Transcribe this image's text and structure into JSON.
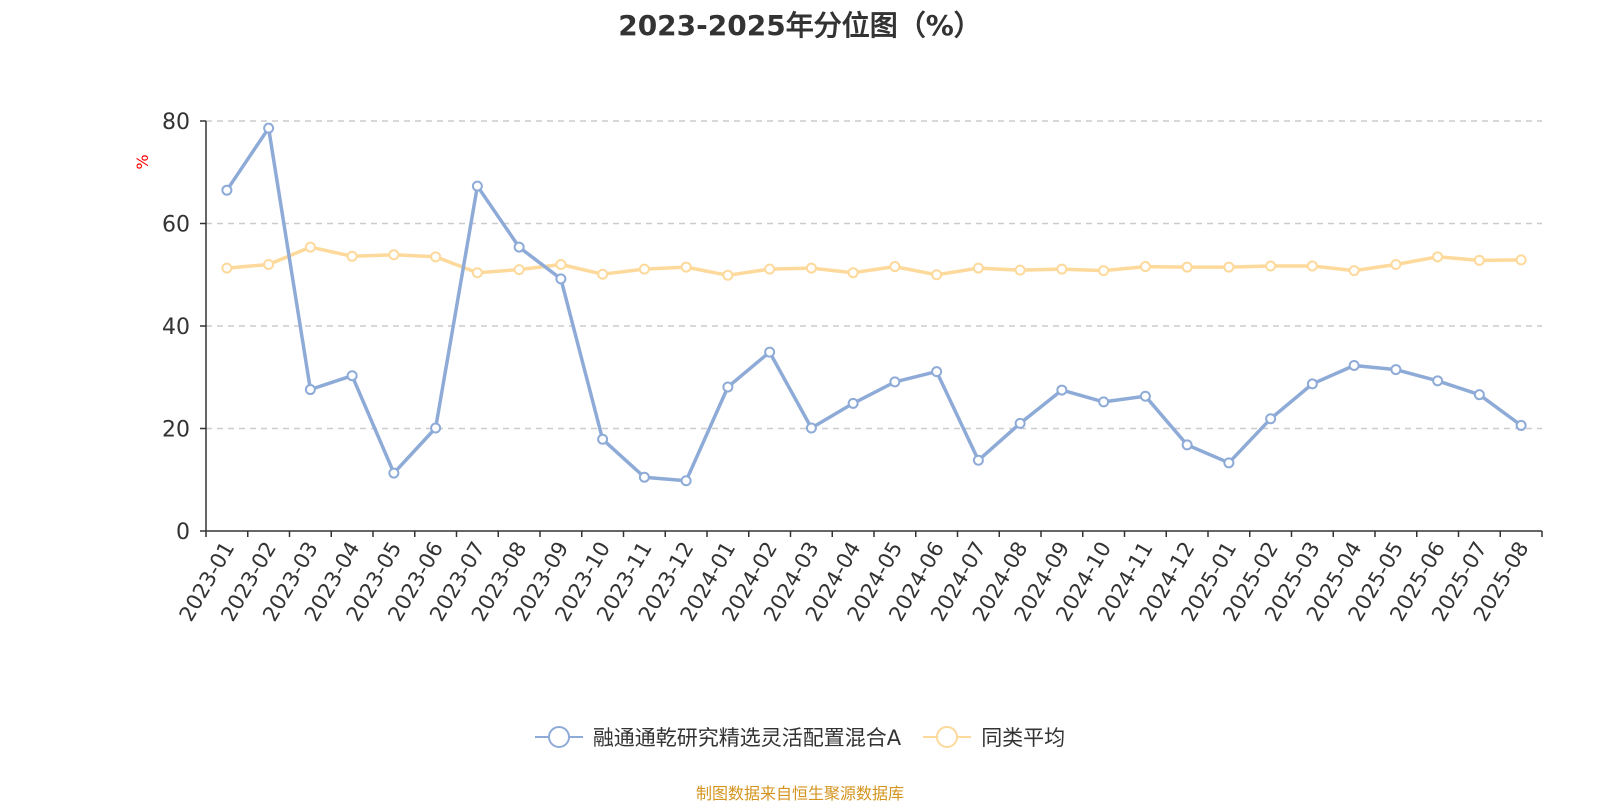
{
  "chart_data": {
    "type": "line",
    "title": "2023-2025年分位图（%）",
    "ylabel": "%",
    "xlabel": "",
    "ylim": [
      0,
      80
    ],
    "yticks": [
      0,
      20,
      40,
      60,
      80
    ],
    "grid": true,
    "legend_position": "bottom",
    "categories": [
      "2023-01",
      "2023-02",
      "2023-03",
      "2023-04",
      "2023-05",
      "2023-06",
      "2023-07",
      "2023-08",
      "2023-09",
      "2023-10",
      "2023-11",
      "2023-12",
      "2024-01",
      "2024-02",
      "2024-03",
      "2024-04",
      "2024-05",
      "2024-06",
      "2024-07",
      "2024-08",
      "2024-09",
      "2024-10",
      "2024-11",
      "2024-12",
      "2025-01",
      "2025-02",
      "2025-03",
      "2025-04",
      "2025-05",
      "2025-06",
      "2025-07",
      "2025-08"
    ],
    "series": [
      {
        "name": "融通通乾研究精选灵活配置混合A",
        "color": "#8eabd8",
        "values": [
          66.5,
          78.6,
          27.6,
          30.3,
          11.3,
          20.1,
          67.3,
          55.4,
          49.2,
          17.9,
          10.5,
          9.8,
          28.1,
          34.9,
          20.1,
          24.9,
          29.1,
          31.1,
          13.8,
          21.0,
          27.5,
          25.2,
          26.3,
          16.8,
          13.3,
          21.9,
          28.7,
          32.3,
          31.5,
          29.3,
          26.6,
          20.6
        ]
      },
      {
        "name": "同类平均",
        "color": "#fdd99b",
        "values": [
          51.3,
          52.0,
          55.4,
          53.6,
          53.9,
          53.5,
          50.4,
          51.0,
          52.0,
          50.1,
          51.1,
          51.5,
          49.9,
          51.1,
          51.3,
          50.4,
          51.6,
          50.0,
          51.3,
          50.9,
          51.1,
          50.8,
          51.6,
          51.5,
          51.5,
          51.7,
          51.7,
          50.8,
          52.0,
          53.5,
          52.8,
          52.9
        ]
      }
    ]
  },
  "footer": {
    "source": "制图数据来自恒生聚源数据库"
  },
  "colors": {
    "axis": "#333333",
    "grid": "#cccccc",
    "ylabel": "#ff0000",
    "source": "#d4941f"
  }
}
